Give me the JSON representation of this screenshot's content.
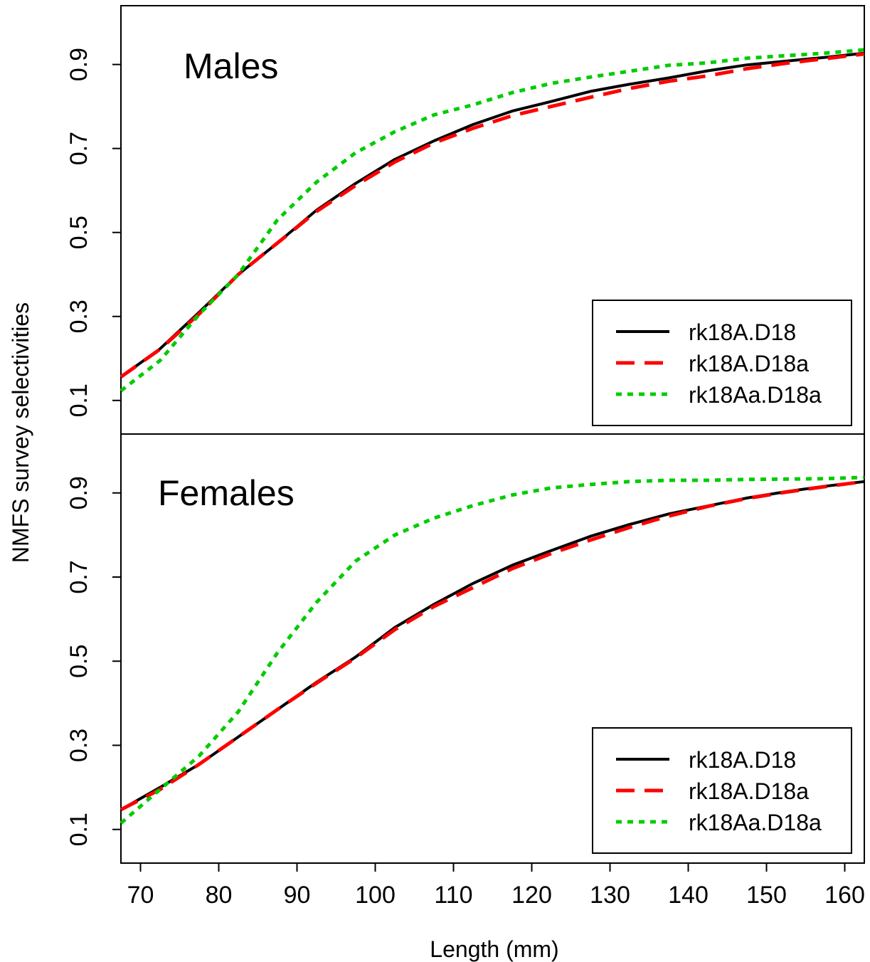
{
  "chart_data": {
    "type": "line",
    "xlabel": "Length (mm)",
    "ylabel": "NMFS survey selectivities",
    "xlim": [
      67.5,
      162.5
    ],
    "ylim": [
      0.02,
      1.04
    ],
    "xticks": [
      70,
      80,
      90,
      100,
      110,
      120,
      130,
      140,
      150,
      160
    ],
    "yticks": [
      0.1,
      0.3,
      0.5,
      0.7,
      0.9
    ],
    "grid": false,
    "legend_position": "bottom-right",
    "x": [
      67.5,
      72.5,
      77.5,
      82.5,
      87.5,
      92.5,
      97.5,
      102.5,
      107.5,
      112.5,
      117.5,
      122.5,
      127.5,
      132.5,
      137.5,
      142.5,
      147.5,
      152.5,
      157.5,
      162.5
    ],
    "panels": [
      {
        "title": "Males",
        "series": [
          {
            "name": "rk18A.D18",
            "color": "#000000",
            "style": "solid",
            "values": [
              0.156,
              0.223,
              0.31,
              0.4,
              0.475,
              0.553,
              0.617,
              0.674,
              0.718,
              0.757,
              0.789,
              0.812,
              0.836,
              0.853,
              0.868,
              0.885,
              0.899,
              0.908,
              0.917,
              0.927
            ]
          },
          {
            "name": "rk18A.D18a",
            "color": "#ff0000",
            "style": "dashed",
            "values": [
              0.156,
              0.222,
              0.306,
              0.4,
              0.475,
              0.55,
              0.612,
              0.668,
              0.713,
              0.748,
              0.778,
              0.8,
              0.822,
              0.843,
              0.86,
              0.873,
              0.89,
              0.903,
              0.914,
              0.925
            ]
          },
          {
            "name": "rk18Aa.D18a",
            "color": "#00cc00",
            "style": "dotted",
            "values": [
              0.123,
              0.195,
              0.305,
              0.4,
              0.53,
              0.62,
              0.69,
              0.74,
              0.78,
              0.804,
              0.833,
              0.855,
              0.87,
              0.884,
              0.898,
              0.904,
              0.915,
              0.921,
              0.927,
              0.935
            ]
          }
        ]
      },
      {
        "title": "Females",
        "series": [
          {
            "name": "rk18A.D18",
            "color": "#000000",
            "style": "solid",
            "values": [
              0.147,
              0.2,
              0.255,
              0.32,
              0.385,
              0.45,
              0.51,
              0.58,
              0.635,
              0.685,
              0.728,
              0.763,
              0.797,
              0.825,
              0.85,
              0.869,
              0.888,
              0.903,
              0.916,
              0.927
            ]
          },
          {
            "name": "rk18A.D18a",
            "color": "#ff0000",
            "style": "dashed",
            "values": [
              0.147,
              0.195,
              0.255,
              0.32,
              0.385,
              0.448,
              0.508,
              0.575,
              0.63,
              0.675,
              0.72,
              0.756,
              0.788,
              0.818,
              0.845,
              0.868,
              0.887,
              0.902,
              0.915,
              0.927
            ]
          },
          {
            "name": "rk18Aa.D18a",
            "color": "#00cc00",
            "style": "dotted",
            "values": [
              0.115,
              0.195,
              0.275,
              0.38,
              0.52,
              0.64,
              0.738,
              0.8,
              0.84,
              0.87,
              0.895,
              0.912,
              0.92,
              0.927,
              0.93,
              0.93,
              0.932,
              0.933,
              0.934,
              0.937
            ]
          }
        ]
      }
    ]
  }
}
